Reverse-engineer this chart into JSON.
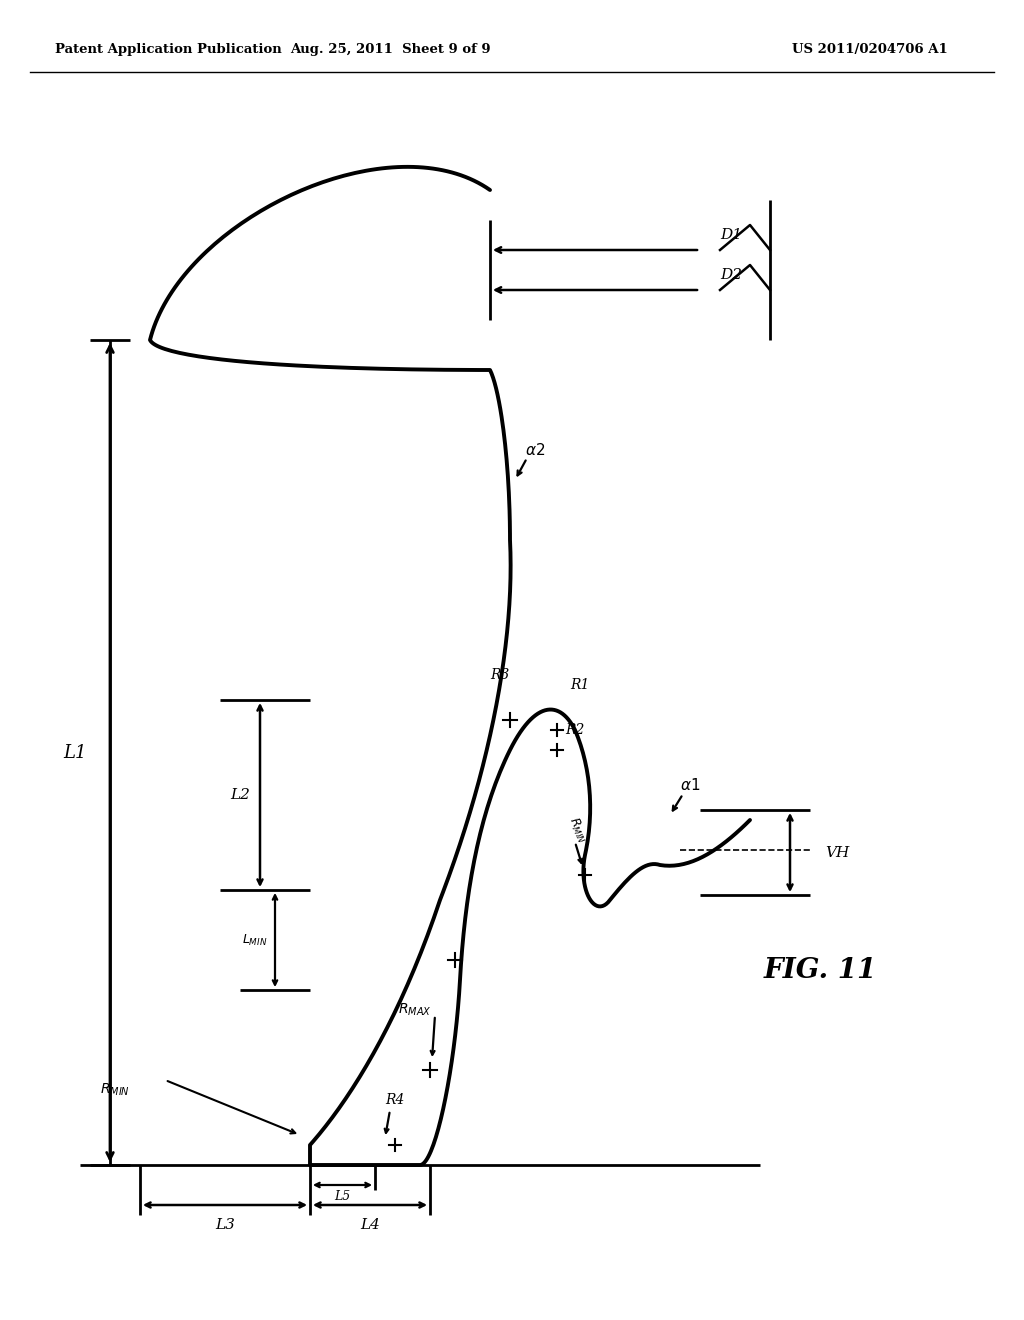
{
  "header_left": "Patent Application Publication",
  "header_mid": "Aug. 25, 2011  Sheet 9 of 9",
  "header_right": "US 2011/0204706 A1",
  "background": "#ffffff",
  "line_color": "#000000",
  "fig_label": "FIG. 11"
}
